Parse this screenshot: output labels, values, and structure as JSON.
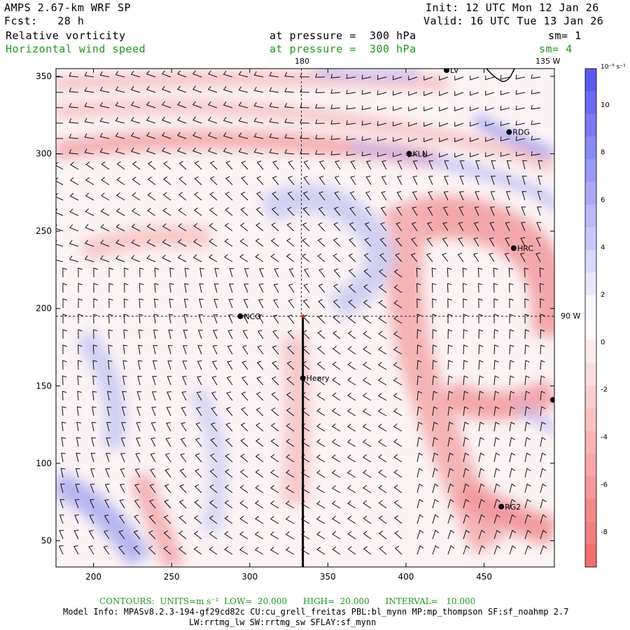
{
  "header": {
    "model": "AMPS 2.67-km WRF SP",
    "fcst": "Fcst:   28 h",
    "init": "Init: 12 UTC Mon 12 Jan 26",
    "valid": "Valid: 16 UTC Tue 13 Jan 26",
    "field1_name": "Relative vorticity",
    "field1_level": "at pressure =  300 hPa",
    "field1_sm": "sm= 1",
    "field2_name": "Horizontal wind speed",
    "field2_level": "at pressure =  300 hPa",
    "field2_sm": "sm= 4"
  },
  "map": {
    "x_ticks": [
      200,
      250,
      300,
      350,
      400,
      450
    ],
    "y_ticks": [
      50,
      100,
      150,
      200,
      250,
      300,
      350
    ],
    "x_range": [
      176,
      495
    ],
    "y_range": [
      33,
      355
    ],
    "grid_labels": {
      "top_180": "180",
      "top_135w": "135 W",
      "right_90w": "90 W"
    },
    "stations": [
      {
        "name": "LV",
        "x": 426,
        "y": 354
      },
      {
        "name": "RDG",
        "x": 466,
        "y": 314
      },
      {
        "name": "KLN",
        "x": 402,
        "y": 300
      },
      {
        "name": "HRC",
        "x": 469,
        "y": 239
      },
      {
        "name": "NCO",
        "x": 294,
        "y": 195
      },
      {
        "name": "Henry",
        "x": 334,
        "y": 155
      },
      {
        "name": "",
        "x": 494,
        "y": 141
      },
      {
        "name": "RG2",
        "x": 461,
        "y": 72
      }
    ],
    "cross_section_line": {
      "x": 334,
      "y_start": 195,
      "y_end": 33
    },
    "guide_lines": {
      "vertical_x": 333,
      "horizontal_y": 195
    }
  },
  "colorbar": {
    "units": "10⁻⁵ s⁻¹",
    "labels": [
      "10",
      "8",
      "6",
      "4",
      "2",
      "0",
      "-2",
      "-4",
      "-6",
      "-8"
    ],
    "positive_color": "#5b5bef",
    "negative_color": "#f07070"
  },
  "footer": {
    "contours": "CONTOURS:  UNITS=m s⁻¹  LOW=  20.000      HIGH=  20.000      INTERVAL=   10.000",
    "model_info": "Model Info: MPASv8.2.3-194-gf29cd82c CU:cu_grell_freitas PBL:bl_mynn MP:mp_thompson SF:sf_noahmp 2.7",
    "model_info2": "LW:rrtmg_lw SW:rrtmg_sw SFLAY:sf_mynn"
  }
}
